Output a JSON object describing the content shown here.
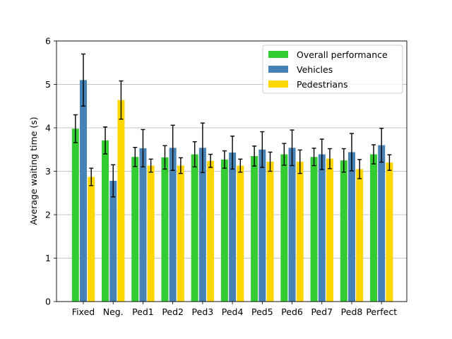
{
  "chart_data": {
    "type": "bar",
    "title": "",
    "xlabel": "",
    "ylabel": "Average waiting time (s)",
    "ylim": [
      0,
      6
    ],
    "yticks": [
      0,
      1,
      2,
      3,
      4,
      5,
      6
    ],
    "grid": "y",
    "legend_position": "top-right",
    "categories": [
      "Fixed",
      "Neg.",
      "Ped1",
      "Ped2",
      "Ped3",
      "Ped4",
      "Ped5",
      "Ped6",
      "Ped7",
      "Ped8",
      "Perfect"
    ],
    "series": [
      {
        "name": "Overall performance",
        "color": "#33cc33",
        "values": [
          3.98,
          3.71,
          3.33,
          3.32,
          3.39,
          3.27,
          3.35,
          3.39,
          3.33,
          3.25,
          3.39
        ],
        "errors": [
          0.32,
          0.31,
          0.22,
          0.27,
          0.29,
          0.2,
          0.23,
          0.25,
          0.2,
          0.27,
          0.22
        ]
      },
      {
        "name": "Vehicles",
        "color": "#4682b4",
        "values": [
          5.1,
          2.78,
          3.53,
          3.54,
          3.54,
          3.43,
          3.5,
          3.54,
          3.39,
          3.44,
          3.6
        ],
        "errors": [
          0.6,
          0.37,
          0.43,
          0.52,
          0.57,
          0.38,
          0.41,
          0.41,
          0.35,
          0.43,
          0.39
        ]
      },
      {
        "name": "Pedestrians",
        "color": "#ffd700",
        "values": [
          2.87,
          4.64,
          3.13,
          3.13,
          3.24,
          3.13,
          3.22,
          3.22,
          3.29,
          3.05,
          3.2
        ],
        "errors": [
          0.2,
          0.44,
          0.15,
          0.18,
          0.15,
          0.15,
          0.22,
          0.27,
          0.23,
          0.22,
          0.18
        ]
      }
    ]
  }
}
